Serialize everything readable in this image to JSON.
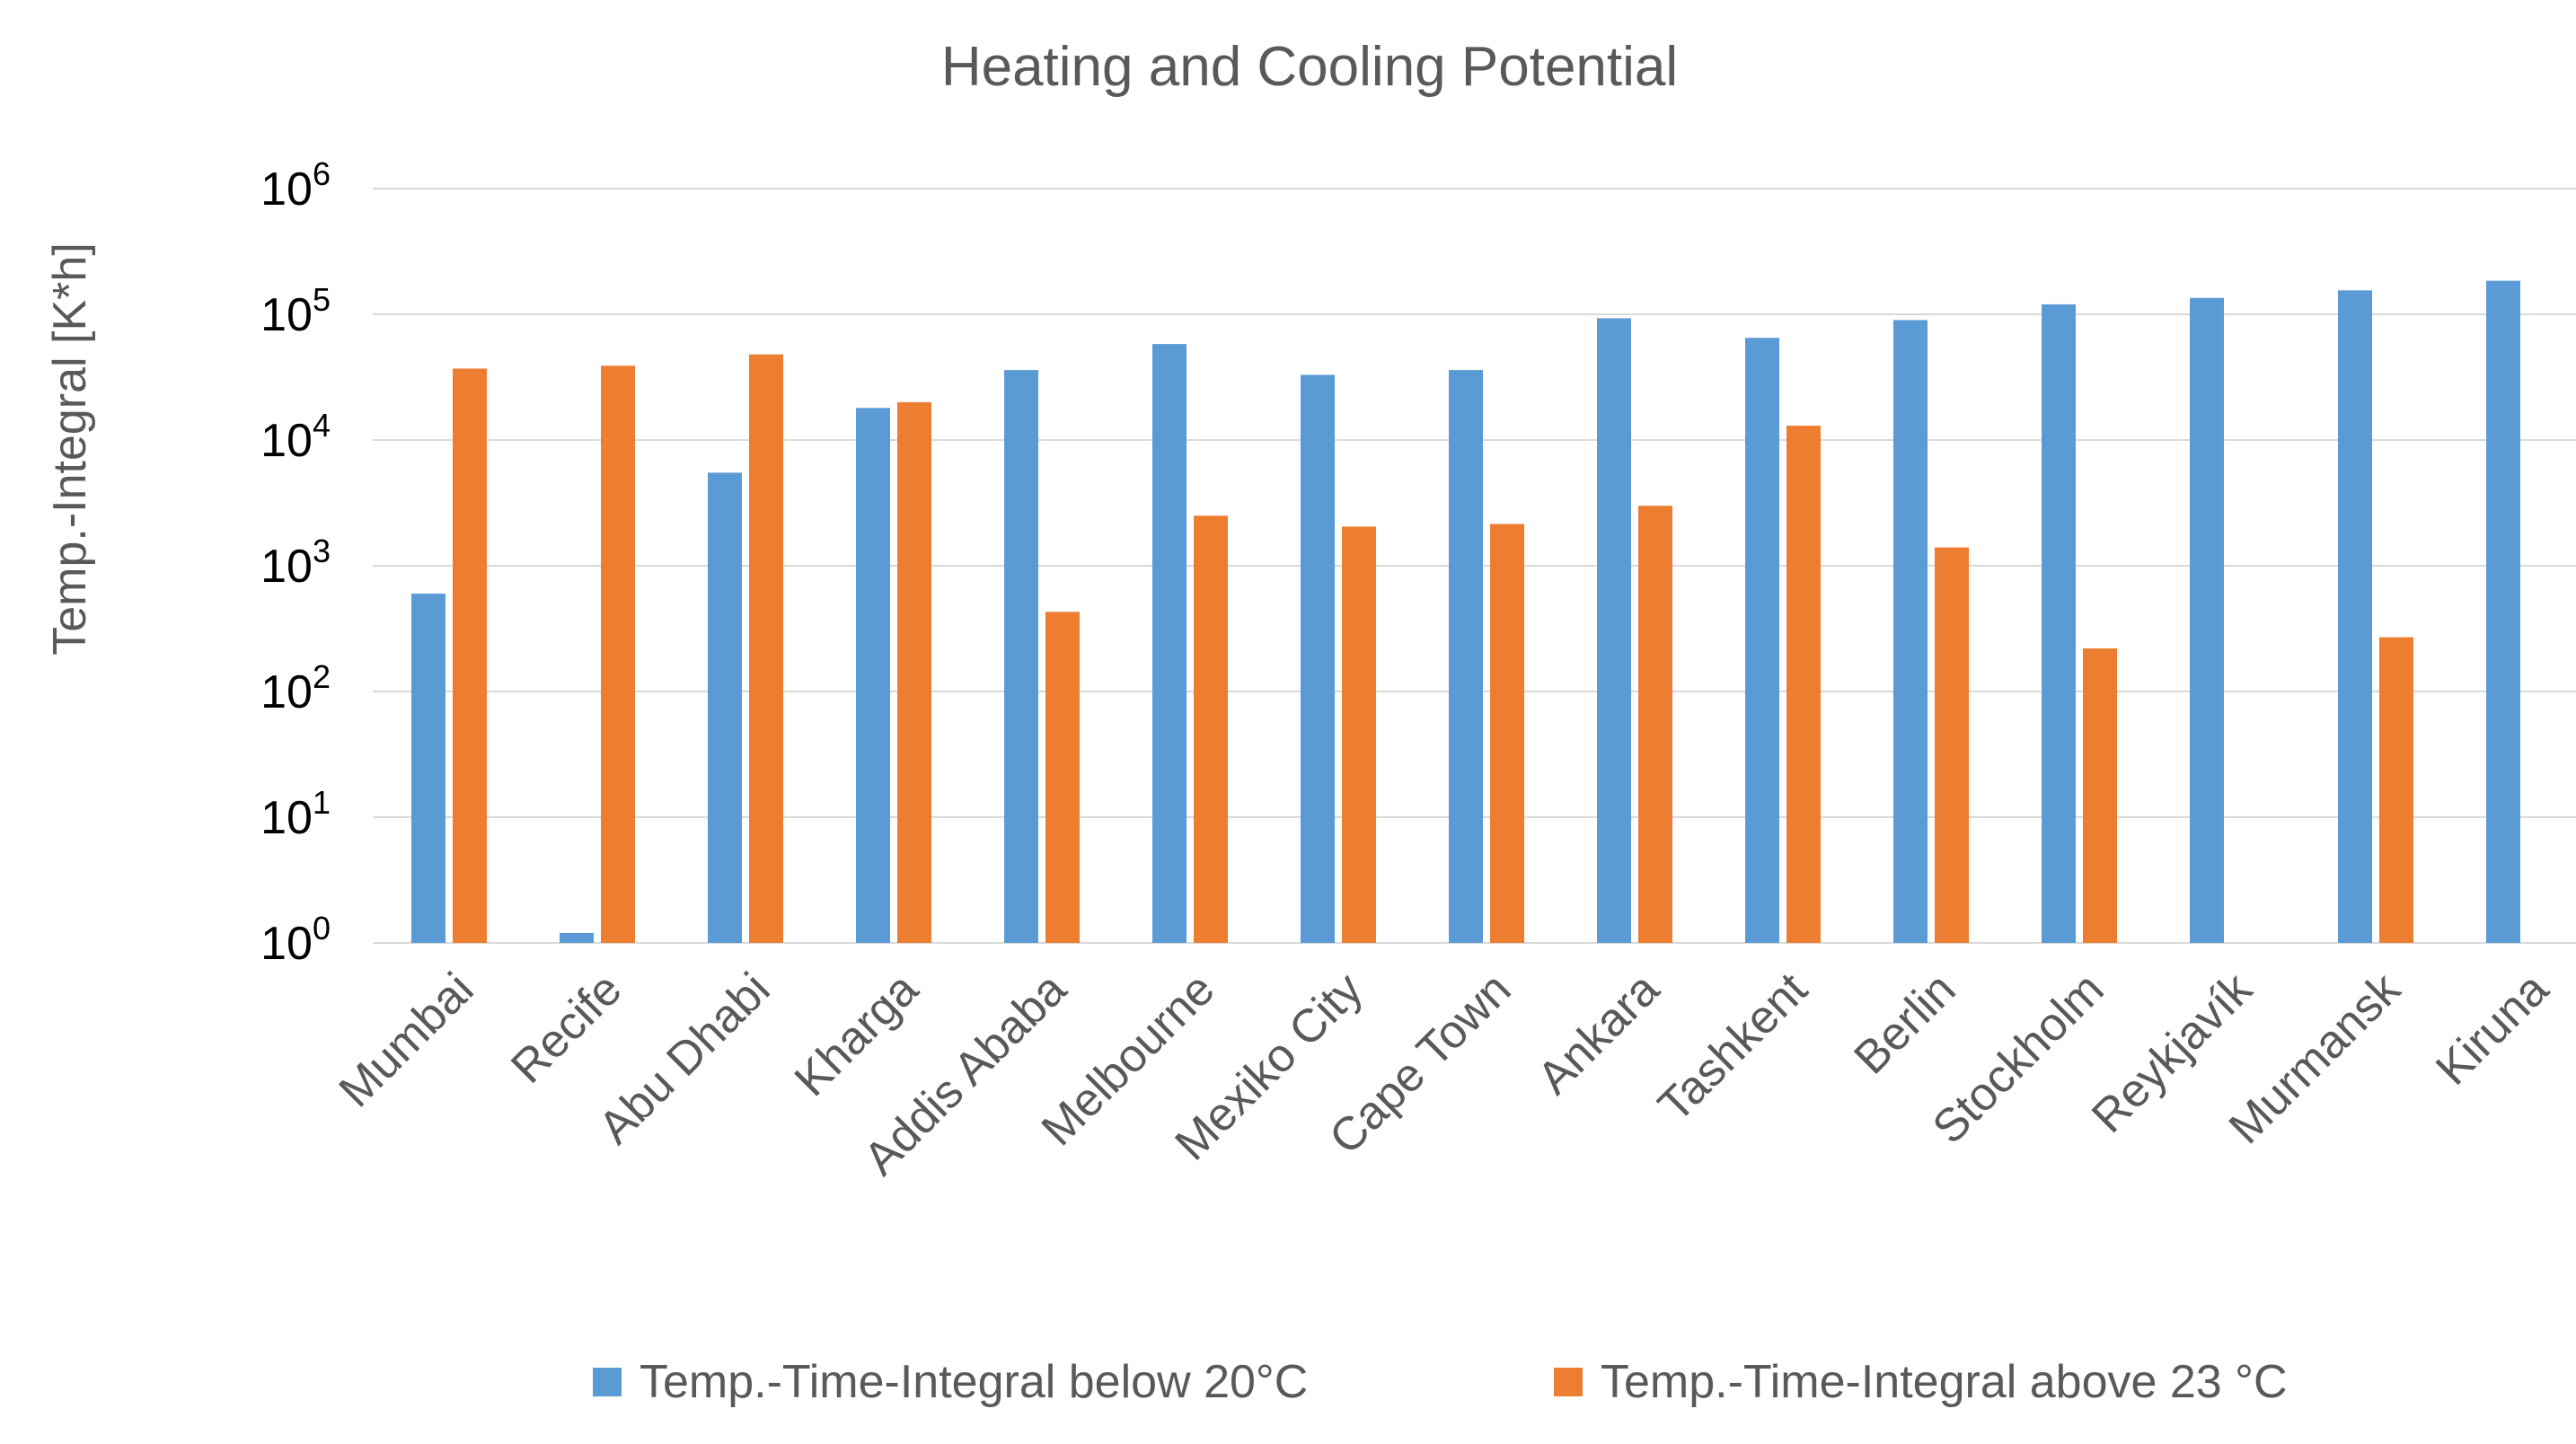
{
  "chart_data": {
    "type": "bar",
    "title": "Heating and Cooling Potential",
    "xlabel": "",
    "ylabel": "Temp.-Integral [K*h]",
    "yscale": "log",
    "ylim": [
      1,
      1000000
    ],
    "ytick_values": [
      1,
      10,
      100,
      1000,
      10000,
      100000,
      1000000
    ],
    "yticks": [
      {
        "base": "10",
        "exp": "0"
      },
      {
        "base": "10",
        "exp": "1"
      },
      {
        "base": "10",
        "exp": "2"
      },
      {
        "base": "10",
        "exp": "3"
      },
      {
        "base": "10",
        "exp": "4"
      },
      {
        "base": "10",
        "exp": "5"
      },
      {
        "base": "10",
        "exp": "6"
      }
    ],
    "grid": true,
    "legend_position": "bottom",
    "categories": [
      "Mumbai",
      "Recife",
      "Abu Dhabi",
      "Kharga",
      "Addis Ababa",
      "Melbourne",
      "Mexiko City",
      "Cape Town",
      "Ankara",
      "Tashkent",
      "Berlin",
      "Stockholm",
      "Reykjavík",
      "Murmansk",
      "Kiruna"
    ],
    "series": [
      {
        "name": "Temp.-Time-Integral below 20°C",
        "color": "#5b9bd5",
        "values": [
          600,
          1.2,
          5500,
          18000,
          36000,
          58000,
          33000,
          36000,
          93000,
          65000,
          90000,
          120000,
          135000,
          155000,
          185000
        ]
      },
      {
        "name": "Temp.-Time-Integral  above 23 °C",
        "color": "#ed7d31",
        "values": [
          37000,
          39000,
          48000,
          20000,
          430,
          2500,
          2050,
          2150,
          3000,
          13000,
          1400,
          220,
          null,
          270,
          null
        ]
      }
    ]
  }
}
